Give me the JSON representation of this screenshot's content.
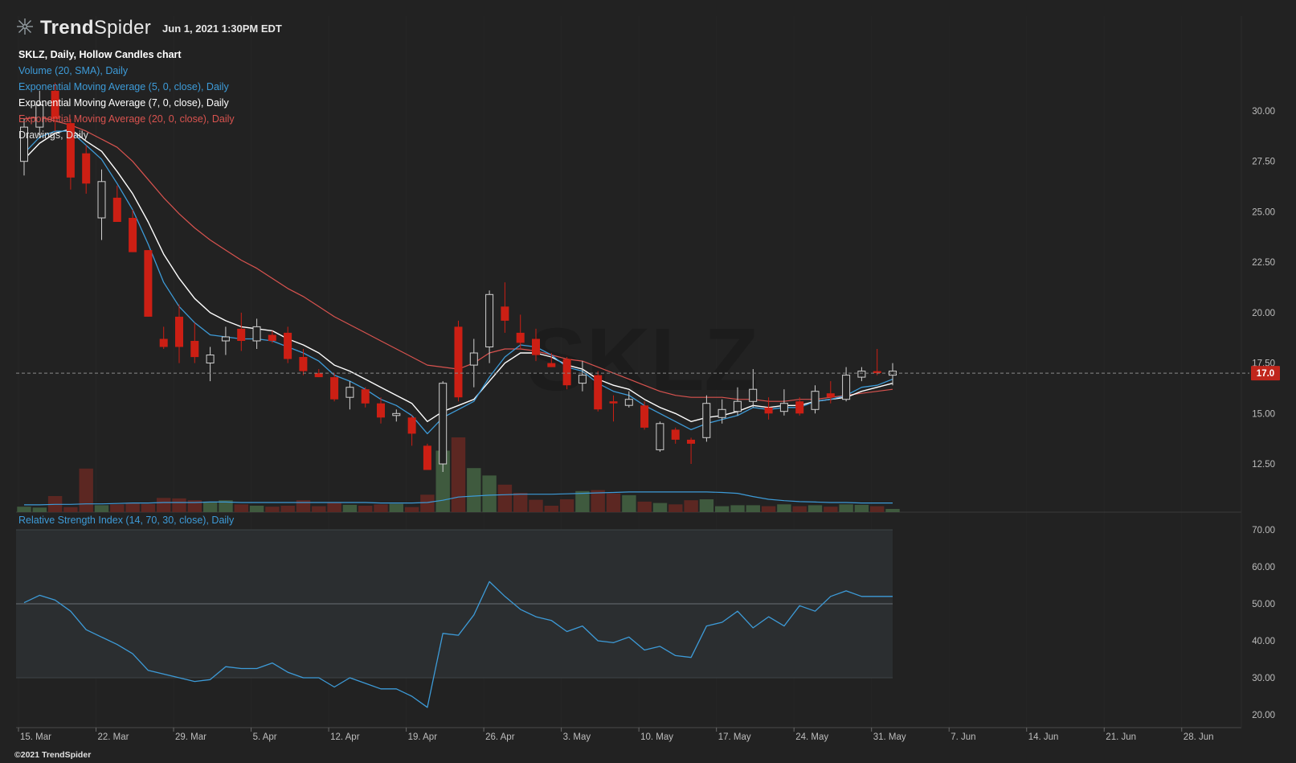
{
  "header": {
    "brand_primary": "Trend",
    "brand_secondary": "Spider",
    "timestamp": "Jun 1, 2021 1:30PM EDT"
  },
  "legend": {
    "title": "SKLZ, Daily, Hollow Candles chart",
    "items": [
      {
        "label": "Volume (20, SMA), Daily",
        "color": "#3d9bd8"
      },
      {
        "label": "Exponential Moving Average (5, 0, close), Daily",
        "color": "#3d9bd8"
      },
      {
        "label": "Exponential Moving Average (7, 0, close), Daily",
        "color": "#ffffff"
      },
      {
        "label": "Exponential Moving Average (20, 0, close), Daily",
        "color": "#d9534f"
      },
      {
        "label": "Drawings, Daily",
        "color": "#e0e0e0"
      }
    ]
  },
  "rsi_panel": {
    "label": "Relative Strength Index (14, 70, 30, close), Daily",
    "color": "#3d9bd8"
  },
  "copyright": "©2021 TrendSpider",
  "watermark": "SKLZ",
  "last_price_label": "17.0",
  "colors": {
    "background": "#222222",
    "up_candle": "#d0d0d0",
    "down_candle": "#cc1f14",
    "volume_up": "#3f5a3e",
    "volume_down": "#5c2722",
    "ema5": "#3d9bd8",
    "ema7": "#ffffff",
    "ema20": "#d9534f",
    "rsi_line": "#3d9bd8",
    "price_tag": "#c0261c"
  },
  "chart_data": {
    "type": "candlestick",
    "title": "SKLZ, Daily, Hollow Candles chart",
    "price_axis": {
      "ticks": [
        "30.00",
        "27.50",
        "25.00",
        "22.50",
        "20.00",
        "17.50",
        "15.00",
        "12.50"
      ],
      "ylim": [
        10.5,
        31.0
      ]
    },
    "rsi_axis": {
      "ticks": [
        "70.00",
        "60.00",
        "50.00",
        "40.00",
        "30.00",
        "20.00"
      ],
      "ylim": [
        18,
        73
      ],
      "upper_band": 70,
      "lower_band": 30,
      "mid_line": 50
    },
    "x_ticks": [
      "15. Mar",
      "22. Mar",
      "29. Mar",
      "5. Apr",
      "12. Apr",
      "19. Apr",
      "26. Apr",
      "3. May",
      "10. May",
      "17. May",
      "24. May",
      "31. May",
      "7. Jun",
      "14. Jun",
      "21. Jun",
      "28. Jun"
    ],
    "last_price": 17.0,
    "candles": [
      {
        "o": 27.5,
        "h": 29.6,
        "l": 26.8,
        "c": 29.2
      },
      {
        "o": 29.2,
        "h": 31.0,
        "l": 28.8,
        "c": 30.3
      },
      {
        "o": 31.0,
        "h": 31.4,
        "l": 29.0,
        "c": 29.6
      },
      {
        "o": 29.4,
        "h": 29.6,
        "l": 26.1,
        "c": 26.7
      },
      {
        "o": 27.9,
        "h": 28.3,
        "l": 25.9,
        "c": 26.4
      },
      {
        "o": 24.7,
        "h": 27.1,
        "l": 23.6,
        "c": 26.5
      },
      {
        "o": 25.7,
        "h": 26.3,
        "l": 24.6,
        "c": 24.5
      },
      {
        "o": 24.7,
        "h": 25.1,
        "l": 23.0,
        "c": 23.0
      },
      {
        "o": 23.1,
        "h": 23.1,
        "l": 19.8,
        "c": 19.8
      },
      {
        "o": 18.7,
        "h": 19.3,
        "l": 18.2,
        "c": 18.3
      },
      {
        "o": 19.8,
        "h": 20.4,
        "l": 17.5,
        "c": 18.3
      },
      {
        "o": 18.6,
        "h": 19.5,
        "l": 17.5,
        "c": 17.8
      },
      {
        "o": 17.5,
        "h": 18.3,
        "l": 16.6,
        "c": 17.9
      },
      {
        "o": 18.6,
        "h": 19.3,
        "l": 17.9,
        "c": 18.8
      },
      {
        "o": 19.2,
        "h": 20.0,
        "l": 18.1,
        "c": 18.6
      },
      {
        "o": 18.6,
        "h": 19.7,
        "l": 18.2,
        "c": 19.3
      },
      {
        "o": 18.9,
        "h": 19.1,
        "l": 18.5,
        "c": 18.6
      },
      {
        "o": 19.0,
        "h": 19.3,
        "l": 17.5,
        "c": 17.7
      },
      {
        "o": 17.8,
        "h": 18.2,
        "l": 16.9,
        "c": 17.1
      },
      {
        "o": 17.0,
        "h": 17.2,
        "l": 16.8,
        "c": 16.8
      },
      {
        "o": 16.8,
        "h": 17.0,
        "l": 15.6,
        "c": 15.7
      },
      {
        "o": 15.8,
        "h": 16.6,
        "l": 15.2,
        "c": 16.3
      },
      {
        "o": 16.2,
        "h": 16.3,
        "l": 15.3,
        "c": 15.5
      },
      {
        "o": 15.5,
        "h": 15.8,
        "l": 14.5,
        "c": 14.8
      },
      {
        "o": 14.9,
        "h": 15.2,
        "l": 14.6,
        "c": 15.0
      },
      {
        "o": 14.8,
        "h": 14.9,
        "l": 13.4,
        "c": 14.0
      },
      {
        "o": 13.4,
        "h": 13.5,
        "l": 12.2,
        "c": 12.2
      },
      {
        "o": 12.5,
        "h": 16.6,
        "l": 12.1,
        "c": 16.5
      },
      {
        "o": 19.3,
        "h": 19.6,
        "l": 15.6,
        "c": 15.8
      },
      {
        "o": 17.4,
        "h": 18.7,
        "l": 16.3,
        "c": 18.0
      },
      {
        "o": 18.3,
        "h": 21.1,
        "l": 17.5,
        "c": 20.9
      },
      {
        "o": 20.3,
        "h": 21.5,
        "l": 19.0,
        "c": 19.6
      },
      {
        "o": 19.0,
        "h": 19.9,
        "l": 18.2,
        "c": 18.5
      },
      {
        "o": 18.7,
        "h": 19.2,
        "l": 17.6,
        "c": 17.9
      },
      {
        "o": 17.5,
        "h": 18.0,
        "l": 17.3,
        "c": 17.3
      },
      {
        "o": 17.7,
        "h": 17.8,
        "l": 16.2,
        "c": 16.4
      },
      {
        "o": 16.5,
        "h": 17.6,
        "l": 16.1,
        "c": 16.9
      },
      {
        "o": 16.9,
        "h": 17.1,
        "l": 15.1,
        "c": 15.2
      },
      {
        "o": 15.6,
        "h": 15.9,
        "l": 14.6,
        "c": 15.5
      },
      {
        "o": 15.4,
        "h": 16.1,
        "l": 15.3,
        "c": 15.7
      },
      {
        "o": 15.4,
        "h": 15.6,
        "l": 14.2,
        "c": 14.3
      },
      {
        "o": 13.2,
        "h": 14.6,
        "l": 13.1,
        "c": 14.5
      },
      {
        "o": 14.2,
        "h": 14.3,
        "l": 13.5,
        "c": 13.7
      },
      {
        "o": 13.7,
        "h": 13.8,
        "l": 12.5,
        "c": 13.5
      },
      {
        "o": 13.8,
        "h": 15.9,
        "l": 13.6,
        "c": 15.5
      },
      {
        "o": 14.8,
        "h": 15.7,
        "l": 14.5,
        "c": 15.2
      },
      {
        "o": 15.1,
        "h": 16.3,
        "l": 14.9,
        "c": 15.6
      },
      {
        "o": 15.6,
        "h": 17.2,
        "l": 15.3,
        "c": 16.2
      },
      {
        "o": 15.3,
        "h": 15.8,
        "l": 14.7,
        "c": 15.0
      },
      {
        "o": 15.1,
        "h": 16.2,
        "l": 14.9,
        "c": 15.5
      },
      {
        "o": 15.6,
        "h": 15.8,
        "l": 14.9,
        "c": 15.0
      },
      {
        "o": 15.2,
        "h": 16.4,
        "l": 15.0,
        "c": 16.1
      },
      {
        "o": 16.0,
        "h": 16.6,
        "l": 15.5,
        "c": 15.8
      },
      {
        "o": 15.7,
        "h": 17.3,
        "l": 15.6,
        "c": 16.9
      },
      {
        "o": 16.8,
        "h": 17.3,
        "l": 16.6,
        "c": 17.1
      },
      {
        "o": 17.1,
        "h": 18.2,
        "l": 16.9,
        "c": 17.0
      },
      {
        "o": 16.9,
        "h": 17.5,
        "l": 16.4,
        "c": 17.1
      }
    ],
    "ema5": [
      27.9,
      28.7,
      29.0,
      29.0,
      28.3,
      27.6,
      26.4,
      25.1,
      23.4,
      21.5,
      20.3,
      19.5,
      18.9,
      18.8,
      18.7,
      18.7,
      18.6,
      18.3,
      18.0,
      17.6,
      16.9,
      16.6,
      16.2,
      15.7,
      15.4,
      14.9,
      14.0,
      14.8,
      15.2,
      15.6,
      16.8,
      17.8,
      18.4,
      18.3,
      17.9,
      17.3,
      17.1,
      16.5,
      16.1,
      15.9,
      15.4,
      15.0,
      14.6,
      14.2,
      14.5,
      14.7,
      14.9,
      15.3,
      15.2,
      15.3,
      15.3,
      15.6,
      15.7,
      15.9,
      16.3,
      16.4,
      16.7
    ],
    "ema7": [
      27.6,
      28.4,
      28.9,
      29.1,
      28.5,
      28.0,
      27.0,
      25.9,
      24.5,
      22.9,
      21.7,
      20.7,
      20.0,
      19.6,
      19.3,
      19.2,
      19.1,
      18.7,
      18.4,
      18.0,
      17.4,
      17.1,
      16.7,
      16.3,
      15.9,
      15.5,
      14.6,
      15.1,
      15.4,
      15.7,
      16.6,
      17.5,
      18.0,
      18.0,
      17.8,
      17.4,
      17.2,
      16.7,
      16.4,
      16.2,
      15.7,
      15.3,
      15.0,
      14.6,
      14.8,
      14.9,
      15.1,
      15.4,
      15.3,
      15.4,
      15.4,
      15.6,
      15.7,
      15.8,
      16.1,
      16.3,
      16.5
    ],
    "ema20": [
      29.6,
      29.7,
      29.5,
      29.3,
      29.0,
      28.6,
      28.2,
      27.5,
      26.6,
      25.7,
      24.9,
      24.2,
      23.6,
      23.1,
      22.6,
      22.2,
      21.7,
      21.2,
      20.8,
      20.3,
      19.8,
      19.4,
      19.0,
      18.6,
      18.2,
      17.8,
      17.4,
      17.3,
      17.2,
      17.5,
      18.0,
      18.2,
      18.2,
      18.1,
      17.9,
      17.7,
      17.6,
      17.3,
      17.0,
      16.7,
      16.4,
      16.1,
      15.9,
      15.8,
      15.8,
      15.8,
      15.7,
      15.7,
      15.6,
      15.6,
      15.7,
      15.7,
      15.8,
      15.9,
      16.0,
      16.1,
      16.2
    ],
    "volume": [
      1.2,
      1.0,
      3.5,
      1.1,
      9.5,
      1.5,
      1.7,
      2.0,
      1.8,
      3.1,
      3.0,
      2.6,
      2.3,
      2.6,
      1.7,
      1.4,
      1.2,
      1.4,
      2.6,
      1.3,
      2.1,
      1.6,
      1.4,
      1.7,
      1.8,
      1.1,
      3.8,
      13.4,
      16.3,
      9.6,
      8.0,
      6.0,
      4.2,
      2.7,
      1.4,
      2.8,
      4.6,
      4.8,
      4.1,
      3.7,
      2.3,
      2.0,
      1.7,
      2.6,
      2.8,
      1.3,
      1.5,
      1.5,
      1.3,
      1.7,
      1.3,
      1.5,
      1.2,
      1.7,
      1.6,
      1.3,
      0.7
    ],
    "volume_sma": [
      1.6,
      1.6,
      1.7,
      1.7,
      1.8,
      1.8,
      1.9,
      2.0,
      2.0,
      2.1,
      2.1,
      2.1,
      2.2,
      2.2,
      2.1,
      2.1,
      2.1,
      2.1,
      2.1,
      2.1,
      2.1,
      2.1,
      2.1,
      2.0,
      2.0,
      2.0,
      2.1,
      2.6,
      3.3,
      3.5,
      3.7,
      3.8,
      3.9,
      3.9,
      3.9,
      4.0,
      4.1,
      4.2,
      4.3,
      4.4,
      4.4,
      4.4,
      4.4,
      4.4,
      4.4,
      4.3,
      4.1,
      3.4,
      2.8,
      2.5,
      2.3,
      2.2,
      2.1,
      2.1,
      2.0,
      2.0,
      2.0
    ],
    "rsi": [
      50.3,
      52.3,
      51.0,
      48.0,
      43.0,
      41.0,
      39.0,
      36.5,
      32.0,
      31.0,
      30.0,
      29.0,
      29.5,
      33.0,
      32.5,
      32.5,
      34.0,
      31.5,
      30.0,
      30.0,
      27.5,
      30.0,
      28.5,
      27.0,
      27.0,
      25.0,
      22.0,
      42.0,
      41.5,
      47.0,
      56.0,
      52.0,
      48.5,
      46.5,
      45.5,
      42.5,
      44.0,
      40.0,
      39.5,
      41.0,
      37.5,
      38.5,
      36.0,
      35.5,
      44.0,
      45.0,
      48.0,
      43.5,
      46.5,
      44.0,
      49.5,
      48.0,
      52.0,
      53.5,
      52.0,
      52.0,
      52.0
    ]
  }
}
